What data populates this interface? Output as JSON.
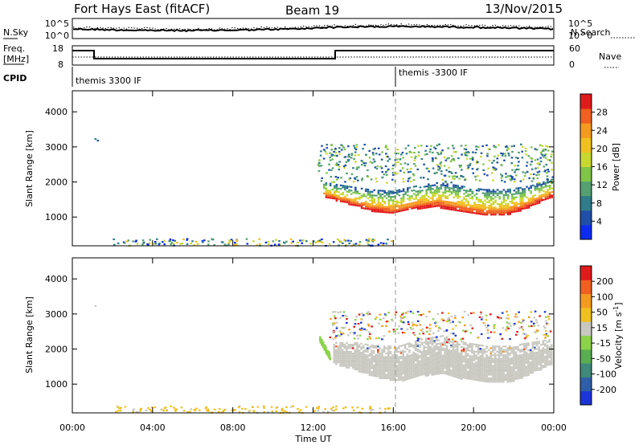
{
  "header": {
    "station": "Fort Hays East (fitACF)",
    "beam": "Beam 19",
    "date": "13/Nov/2015"
  },
  "noise_panel": {
    "left_label": "N.Sky",
    "right_label": "N.Search",
    "top_tick": "10^5",
    "bottom_tick": "10^0"
  },
  "freq_panel": {
    "left_label_1": "Freq.",
    "left_label_2": "[MHz]",
    "right_label": "Nave",
    "left_ticks": [
      "18",
      "8"
    ],
    "right_ticks": [
      "60",
      "0"
    ]
  },
  "cpid_panel": {
    "label": "CPID",
    "segments": [
      {
        "start_hour": 0,
        "text": "themis 3300 IF"
      },
      {
        "start_hour": 16,
        "text": "themis -3300 IF"
      }
    ]
  },
  "chart_data": [
    {
      "type": "heatmap",
      "name": "power",
      "xlabel": "Time UT",
      "ylabel": "Slant Range [km]",
      "xlim": [
        0,
        24
      ],
      "ylim": [
        180,
        4600
      ],
      "x_tick_labels": [
        "00:00",
        "04:00",
        "08:00",
        "12:00",
        "16:00",
        "20:00",
        "00:00"
      ],
      "y_ticks": [
        1000,
        2000,
        3000,
        4000
      ],
      "colorbar": {
        "label": "Power [dB]",
        "tick_labels": [
          "4",
          "8",
          "12",
          "16",
          "20",
          "24",
          "28"
        ],
        "colors": [
          "#0d2cf0",
          "#1f4fa8",
          "#2f7c8a",
          "#55a070",
          "#7fc548",
          "#c8d830",
          "#f0c020",
          "#f59a20",
          "#f06020",
          "#e01b1b"
        ]
      },
      "features": [
        {
          "description": "dense main echo band",
          "start_hour": 12.5,
          "end_hour": 23.9,
          "lower_edge_km": [
            1600,
            1400,
            1200,
            1100,
            1250,
            1300,
            1150,
            1050,
            1050,
            1300,
            1600
          ],
          "upper_edge_km": [
            2000,
            1900,
            1800,
            1750,
            1900,
            2000,
            1900,
            1800,
            1800,
            1900,
            2100
          ]
        },
        {
          "description": "upper patchy echoes",
          "start_hour": 12.2,
          "end_hour": 23.9,
          "range_km": [
            2000,
            3100
          ]
        },
        {
          "description": "isolated echo",
          "hour": 1.1,
          "range_km": 3250
        },
        {
          "description": "ground scatter near 200 km",
          "start_hour": 2.0,
          "end_hour": 16.0,
          "range_km": 260
        }
      ]
    },
    {
      "type": "heatmap",
      "name": "velocity",
      "xlabel": "Time UT",
      "ylabel": "Slant Range [km]",
      "xlim": [
        0,
        24
      ],
      "ylim": [
        180,
        4600
      ],
      "x_tick_labels": [
        "00:00",
        "04:00",
        "08:00",
        "12:00",
        "16:00",
        "20:00",
        "00:00"
      ],
      "y_ticks": [
        1000,
        2000,
        3000,
        4000
      ],
      "colorbar": {
        "label": "Velocity [m s^-1]",
        "tick_labels": [
          "200",
          "100",
          "50",
          "15",
          "-15",
          "-50",
          "-100",
          "-200"
        ],
        "colors": [
          "#1c35d8",
          "#2f5fa8",
          "#3f8a7a",
          "#5aae52",
          "#8cd34a",
          "#c8c8c0",
          "#f0c020",
          "#f59a20",
          "#f06020",
          "#e01b1b"
        ]
      },
      "features": [
        {
          "description": "ground scatter (grey) main band",
          "start_hour": 13.0,
          "end_hour": 23.9,
          "lower_edge_km": [
            1600,
            1400,
            1200,
            1100,
            1250,
            1300,
            1150,
            1050,
            1050,
            1300,
            1600
          ],
          "upper_edge_km": [
            2200,
            2200,
            2100,
            2100,
            2300,
            2400,
            2200,
            2100,
            2100,
            2200,
            2300
          ]
        },
        {
          "description": "green streak",
          "start_hour": 12.3,
          "end_hour": 12.8,
          "range_km": [
            1800,
            2300
          ]
        }
      ]
    }
  ]
}
